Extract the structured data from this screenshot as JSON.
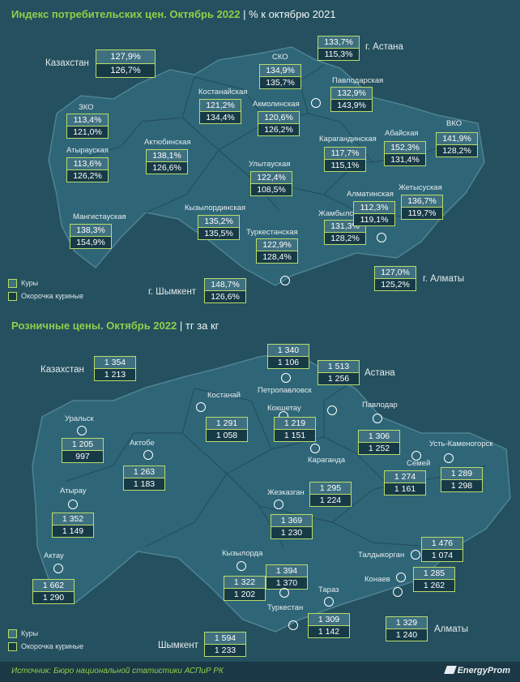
{
  "header1": {
    "title": "Индекс потребительских цен. Октябрь 2022",
    "subtitle": "% к октябрю 2021"
  },
  "header2": {
    "title": "Розничные цены. Октябрь 2022",
    "subtitle": "тг за кг"
  },
  "legend": {
    "items": [
      "Куры",
      "Окорочка куриные"
    ]
  },
  "footer": {
    "source": "Источник: Бюро национальной статистики АСПиР РК",
    "brand": "EnergyProm"
  },
  "colors": {
    "background": "#24505f",
    "accent": "#8fd04a",
    "box_border": "#b9dc6a",
    "row1": "#3f7080",
    "row2": "#173a47"
  },
  "chart_data": [
    {
      "type": "table",
      "title": "Индекс потребительских цен. Октябрь 2022",
      "subtitle": "% к октябрю 2021",
      "series_names": [
        "Куры",
        "Окорочка куриные"
      ],
      "regions": [
        {
          "name": "Казахстан",
          "values": [
            "127,9%",
            "126,7%"
          ]
        },
        {
          "name": "г. Астана",
          "values": [
            "133,7%",
            "115,3%"
          ]
        },
        {
          "name": "СКО",
          "values": [
            "134,9%",
            "135,7%"
          ]
        },
        {
          "name": "Павлодарская",
          "values": [
            "132,9%",
            "143,9%"
          ]
        },
        {
          "name": "Костанайская",
          "values": [
            "121,2%",
            "134,4%"
          ]
        },
        {
          "name": "Акмолинская",
          "values": [
            "120,6%",
            "126,2%"
          ]
        },
        {
          "name": "ЗКО",
          "values": [
            "113,4%",
            "121,0%"
          ]
        },
        {
          "name": "Атырауская",
          "values": [
            "113,6%",
            "126,2%"
          ]
        },
        {
          "name": "Актюбинская",
          "values": [
            "138,1%",
            "126,6%"
          ]
        },
        {
          "name": "Улытауская",
          "values": [
            "122,4%",
            "108,5%"
          ]
        },
        {
          "name": "Карагандинская",
          "values": [
            "117,7%",
            "115,1%"
          ]
        },
        {
          "name": "Абайская",
          "values": [
            "152,3%",
            "131,4%"
          ]
        },
        {
          "name": "ВКО",
          "values": [
            "141,9%",
            "128,2%"
          ]
        },
        {
          "name": "Мангистауская",
          "values": [
            "138,3%",
            "154,9%"
          ]
        },
        {
          "name": "Кызылординская",
          "values": [
            "135,2%",
            "135,5%"
          ]
        },
        {
          "name": "Туркестанская",
          "values": [
            "122,9%",
            "128,4%"
          ]
        },
        {
          "name": "Жамбылская",
          "values": [
            "131,3%",
            "128,2%"
          ]
        },
        {
          "name": "Алматинская",
          "values": [
            "112,3%",
            "119,1%"
          ]
        },
        {
          "name": "Жетысуская",
          "values": [
            "136,7%",
            "119,7%"
          ]
        },
        {
          "name": "г. Алматы",
          "values": [
            "127,0%",
            "125,2%"
          ]
        },
        {
          "name": "г. Шымкент",
          "values": [
            "148,7%",
            "126,6%"
          ]
        }
      ]
    },
    {
      "type": "table",
      "title": "Розничные цены. Октябрь 2022",
      "subtitle": "тг за кг",
      "series_names": [
        "Куры",
        "Окорочка куриные"
      ],
      "cities": [
        {
          "name": "Казахстан",
          "values": [
            "1 354",
            "1 213"
          ]
        },
        {
          "name": "Петропавловск",
          "values": [
            "1 340",
            "1 106"
          ]
        },
        {
          "name": "Астана",
          "values": [
            "1 513",
            "1 256"
          ]
        },
        {
          "name": "Костанай",
          "values": [
            "1 291",
            "1 058"
          ]
        },
        {
          "name": "Кокшетау",
          "values": [
            "1 219",
            "1 151"
          ]
        },
        {
          "name": "Павлодар",
          "values": [
            "1 306",
            "1 252"
          ]
        },
        {
          "name": "Уральск",
          "values": [
            "1 205",
            "997"
          ]
        },
        {
          "name": "Актобе",
          "values": [
            "1 263",
            "1 183"
          ]
        },
        {
          "name": "Семей",
          "values": [
            "1 274",
            "1 161"
          ]
        },
        {
          "name": "Усть-Каменогорск",
          "values": [
            "1 289",
            "1 298"
          ]
        },
        {
          "name": "Караганда",
          "values": [
            "1 295",
            "1 224"
          ]
        },
        {
          "name": "Атырау",
          "values": [
            "1 352",
            "1 149"
          ]
        },
        {
          "name": "Жезказган",
          "values": [
            "1 369",
            "1 230"
          ]
        },
        {
          "name": "Талдыкорган",
          "values": [
            "1 476",
            "1 074"
          ]
        },
        {
          "name": "Актау",
          "values": [
            "1 662",
            "1 290"
          ]
        },
        {
          "name": "Кызылорда",
          "values": [
            "1 322",
            "1 202"
          ]
        },
        {
          "name": "Туркестан",
          "values": [
            "1 394",
            "1 370"
          ]
        },
        {
          "name": "Конаев",
          "values": [
            "1 285",
            "1 262"
          ]
        },
        {
          "name": "Тараз",
          "values": [
            "1 309",
            "1 142"
          ]
        },
        {
          "name": "Алматы",
          "values": [
            "1 329",
            "1 240"
          ]
        },
        {
          "name": "Шымкент",
          "values": [
            "1 594",
            "1 233"
          ]
        }
      ]
    }
  ]
}
